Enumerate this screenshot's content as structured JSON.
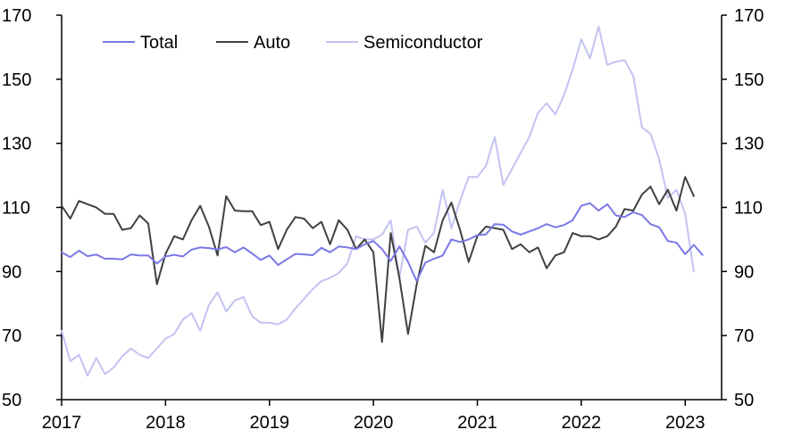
{
  "chart_data": {
    "type": "line",
    "x_start": 2017.0,
    "x_step": 0.08333,
    "xlim": [
      2017,
      2023.35
    ],
    "ylim": [
      50,
      170
    ],
    "x_ticks": [
      "2017",
      "2018",
      "2019",
      "2020",
      "2021",
      "2022",
      "2023"
    ],
    "y_ticks_left": [
      "50",
      "70",
      "90",
      "110",
      "130",
      "150",
      "170"
    ],
    "y_ticks_right": [
      "50",
      "70",
      "90",
      "110",
      "130",
      "150",
      "170"
    ],
    "grid": false,
    "legend": {
      "placement": "top-left",
      "items": [
        {
          "name": "Total",
          "color": "#7b78e6"
        },
        {
          "name": "Auto",
          "color": "#404040"
        },
        {
          "name": "Semiconductor",
          "color": "#c3c3f2"
        }
      ]
    },
    "series": [
      {
        "name": "Total",
        "color": "#7b78e6",
        "values": [
          96.0,
          94.5,
          96.5,
          94.8,
          95.3,
          94.0,
          94.0,
          93.8,
          95.3,
          95.0,
          95.0,
          92.5,
          94.7,
          95.2,
          94.7,
          96.8,
          97.5,
          97.3,
          96.9,
          97.6,
          96.0,
          97.5,
          95.6,
          93.6,
          95.0,
          92.0,
          93.8,
          95.5,
          95.3,
          95.1,
          97.4,
          96.0,
          97.8,
          97.5,
          97.0,
          98.5,
          99.5,
          97.0,
          93.3,
          97.8,
          93.0,
          87.0,
          92.8,
          94.0,
          95.0,
          100.0,
          99.2,
          100.0,
          101.3,
          101.6,
          104.8,
          104.6,
          102.5,
          101.5,
          102.5,
          103.5,
          104.8,
          103.8,
          104.5,
          106.0,
          110.5,
          111.3,
          109.0,
          111.0,
          107.5,
          107.0,
          108.5,
          107.6,
          104.8,
          103.8,
          99.5,
          99.0,
          95.4,
          98.3,
          95.2
        ]
      },
      {
        "name": "Auto",
        "color": "#404040",
        "values": [
          110.5,
          106.5,
          112.0,
          111.0,
          110.0,
          108.0,
          108.0,
          103.0,
          103.5,
          107.5,
          105.0,
          86.0,
          95.5,
          101.0,
          100.0,
          106.0,
          110.5,
          104.0,
          95.0,
          113.5,
          109.0,
          108.8,
          108.8,
          104.5,
          105.5,
          97.0,
          103.0,
          107.0,
          106.5,
          103.5,
          105.5,
          98.5,
          106.0,
          103.0,
          97.0,
          100.0,
          96.0,
          68.0,
          102.0,
          88.0,
          70.5,
          86.0,
          98.0,
          96.0,
          106.0,
          111.5,
          103.0,
          93.0,
          101.0,
          104.0,
          103.5,
          103.0,
          97.0,
          98.5,
          96.0,
          97.5,
          91.0,
          95.0,
          96.0,
          102.0,
          101.0,
          101.0,
          100.0,
          101.0,
          104.0,
          109.5,
          109.0,
          114.0,
          116.5,
          111.0,
          115.5,
          109.0,
          119.5,
          113.5
        ]
      },
      {
        "name": "Semiconductor",
        "color": "#c3c3f2",
        "values": [
          71.5,
          62.0,
          64.0,
          57.5,
          63.0,
          58.0,
          60.0,
          63.5,
          66.0,
          64.0,
          63.0,
          66.0,
          69.0,
          70.5,
          75.0,
          77.0,
          71.5,
          79.5,
          83.5,
          77.5,
          81.0,
          82.0,
          76.0,
          74.0,
          74.0,
          73.5,
          75.0,
          78.5,
          81.5,
          84.5,
          87.0,
          88.0,
          89.5,
          92.5,
          101.0,
          100.0,
          100.0,
          101.5,
          106.0,
          88.0,
          103.0,
          104.0,
          99.0,
          102.0,
          115.5,
          103.5,
          112.0,
          119.5,
          119.5,
          123.0,
          132.0,
          117.0,
          122.0,
          127.0,
          132.0,
          139.5,
          142.5,
          139.0,
          145.0,
          153.0,
          162.5,
          156.5,
          166.5,
          154.5,
          155.5,
          156.0,
          151.0,
          135.0,
          133.0,
          125.0,
          113.0,
          115.5,
          108.0,
          90.0
        ]
      }
    ]
  }
}
